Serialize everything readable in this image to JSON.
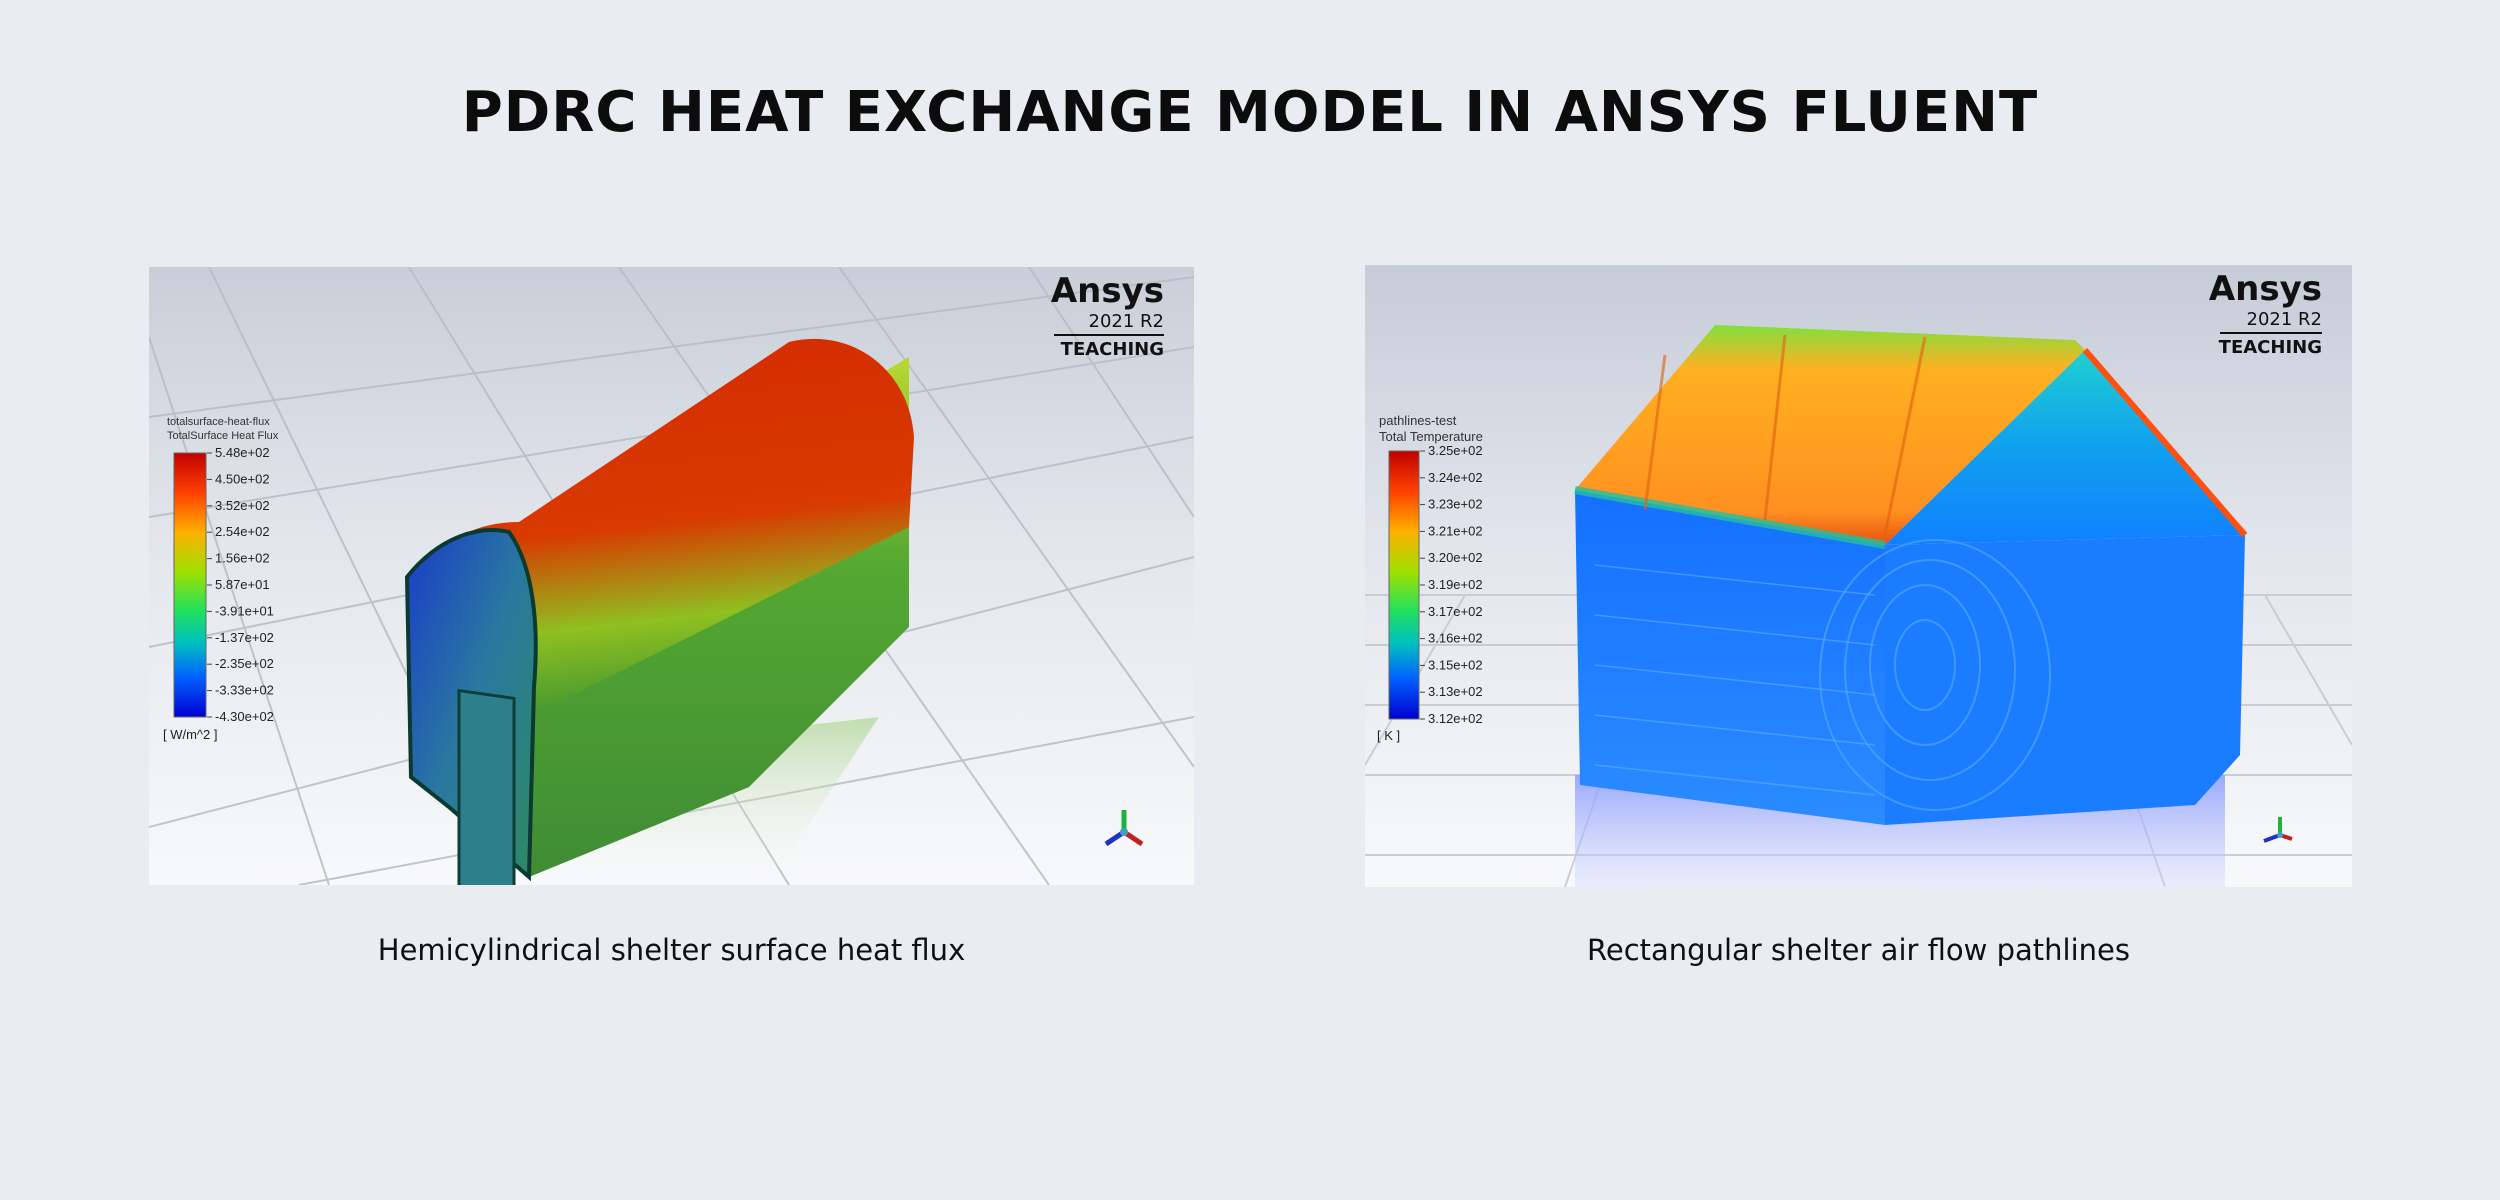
{
  "page": {
    "title": "PDRC HEAT EXCHANGE MODEL IN ANSYS FLUENT"
  },
  "panels": [
    {
      "caption": "Hemicylindrical shelter surface heat flux",
      "brand": {
        "name": "Ansys",
        "version": "2021 R2",
        "edition": "TEACHING"
      },
      "legend": {
        "title1": "totalsurface-heat-flux",
        "title2": "TotalSurface Heat Flux",
        "values": [
          "5.48e+02",
          "4.50e+02",
          "3.52e+02",
          "2.54e+02",
          "1.56e+02",
          "5.87e+01",
          "-3.91e+01",
          "-1.37e+02",
          "-2.35e+02",
          "-3.33e+02",
          "-4.30e+02"
        ],
        "unit": "[ W/m^2 ]"
      }
    },
    {
      "caption": "Rectangular shelter air flow pathlines",
      "brand": {
        "name": "Ansys",
        "version": "2021 R2",
        "edition": "TEACHING"
      },
      "legend": {
        "title1": "pathlines-test",
        "title2": "Total Temperature",
        "values": [
          "3.25e+02",
          "3.24e+02",
          "3.23e+02",
          "3.21e+02",
          "3.20e+02",
          "3.19e+02",
          "3.17e+02",
          "3.16e+02",
          "3.15e+02",
          "3.13e+02",
          "3.12e+02"
        ],
        "unit": "[ K ]"
      }
    }
  ],
  "colors": {
    "background": "#e9ecf0",
    "colormap": [
      "#c00000",
      "#ff4000",
      "#ffb000",
      "#a0e000",
      "#20e060",
      "#00c0c0",
      "#0060ff",
      "#0000d0"
    ]
  },
  "icons": [
    "triad-axis-icon"
  ]
}
